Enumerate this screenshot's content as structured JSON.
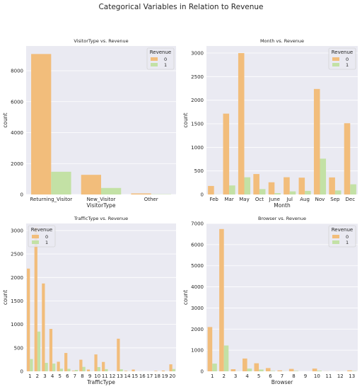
{
  "figure": {
    "title": "Categorical Variables in Relation to Revenue"
  },
  "colors": {
    "revenue_0": "#f2bd7b",
    "revenue_1": "#c3e1a5",
    "panel_bg": "#eaeaf2",
    "grid": "#ffffff"
  },
  "chart_data": [
    {
      "type": "bar",
      "title": "VisitorType vs. Revenue",
      "xlabel": "VisitorType",
      "ylabel": "count",
      "categories": [
        "Returning_Visitor",
        "New_Visitor",
        "Other"
      ],
      "ylim": [
        0,
        9600
      ],
      "yticks": [
        0,
        2000,
        4000,
        6000,
        8000
      ],
      "legend": {
        "title": "Revenue",
        "position": "top-right"
      },
      "series": [
        {
          "name": "0",
          "values": [
            9081,
            1272,
            69
          ]
        },
        {
          "name": "1",
          "values": [
            1470,
            422,
            16
          ]
        }
      ]
    },
    {
      "type": "bar",
      "title": "Month vs. Revenue",
      "xlabel": "Month",
      "ylabel": "count",
      "categories": [
        "Feb",
        "Mar",
        "May",
        "Oct",
        "June",
        "Jul",
        "Aug",
        "Nov",
        "Sep",
        "Dec"
      ],
      "ylim": [
        0,
        3150
      ],
      "yticks": [
        0,
        500,
        1000,
        1500,
        2000,
        2500,
        3000
      ],
      "legend": {
        "title": "Revenue",
        "position": "top-right"
      },
      "series": [
        {
          "name": "0",
          "values": [
            181,
            1715,
            2999,
            434,
            259,
            366,
            357,
            2238,
            362,
            1511
          ]
        },
        {
          "name": "1",
          "values": [
            3,
            192,
            365,
            115,
            29,
            66,
            76,
            760,
            86,
            216
          ]
        }
      ]
    },
    {
      "type": "bar",
      "title": "TrafficType vs. Revenue",
      "xlabel": "TrafficType",
      "ylabel": "count",
      "categories": [
        "1",
        "2",
        "3",
        "4",
        "5",
        "6",
        "7",
        "8",
        "9",
        "10",
        "11",
        "12",
        "13",
        "14",
        "15",
        "16",
        "17",
        "18",
        "19",
        "20"
      ],
      "ylim": [
        0,
        3150
      ],
      "yticks": [
        0,
        500,
        1000,
        1500,
        2000,
        2500,
        3000
      ],
      "legend": {
        "title": "Revenue",
        "position": "top-left"
      },
      "series": [
        {
          "name": "0",
          "values": [
            2189,
            3066,
            1872,
            904,
            204,
            391,
            12,
            248,
            38,
            360,
            200,
            1,
            695,
            11,
            38,
            2,
            1,
            10,
            16,
            149
          ]
        },
        {
          "name": "1",
          "values": [
            262,
            847,
            180,
            165,
            56,
            53,
            28,
            95,
            4,
            90,
            47,
            0,
            43,
            2,
            0,
            1,
            0,
            0,
            1,
            49
          ]
        }
      ]
    },
    {
      "type": "bar",
      "title": "Browser vs. Revenue",
      "xlabel": "Browser",
      "ylabel": "count",
      "categories": [
        "1",
        "2",
        "3",
        "4",
        "5",
        "6",
        "7",
        "8",
        "9",
        "10",
        "11",
        "12",
        "13"
      ],
      "ylim": [
        0,
        7000
      ],
      "yticks": [
        0,
        1000,
        2000,
        3000,
        4000,
        5000,
        6000,
        7000
      ],
      "legend": {
        "title": "Revenue",
        "position": "top-right"
      },
      "series": [
        {
          "name": "0",
          "values": [
            2097,
            6738,
            100,
            606,
            381,
            154,
            43,
            114,
            1,
            130,
            5,
            7,
            45
          ]
        },
        {
          "name": "1",
          "values": [
            365,
            1223,
            5,
            130,
            86,
            20,
            6,
            21,
            0,
            33,
            1,
            3,
            16
          ]
        }
      ]
    }
  ]
}
